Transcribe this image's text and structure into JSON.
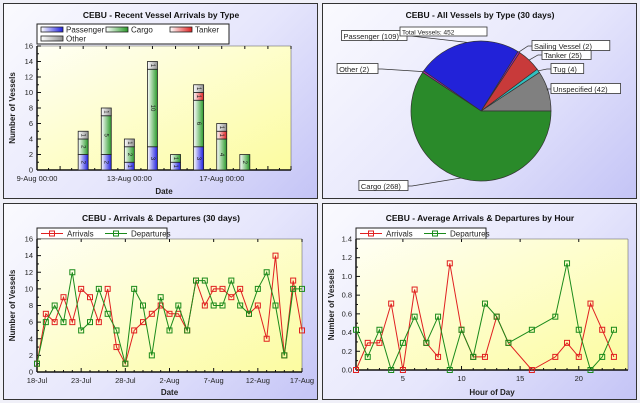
{
  "chart_data": [
    {
      "type": "bar",
      "stacked": true,
      "title": "CEBU - Recent Vessel Arrivals by Type",
      "xlabel": "Date",
      "ylabel": "Number of Vessels",
      "ylim": [
        0,
        16
      ],
      "yticks": [
        0,
        2,
        4,
        6,
        8,
        10,
        12,
        14,
        16
      ],
      "xlim_days": [
        9,
        20
      ],
      "xticks": [
        {
          "day": 9,
          "label": "9-Aug 00:00"
        },
        {
          "day": 13,
          "label": "13-Aug 00:00"
        },
        {
          "day": 17,
          "label": "17-Aug 00:00"
        }
      ],
      "categories_day": [
        11,
        12,
        13,
        14,
        15,
        16,
        17,
        18
      ],
      "series": [
        {
          "name": "Passenger",
          "color": "#2020e0",
          "values": [
            2,
            2,
            1,
            3,
            1,
            3,
            0,
            0
          ]
        },
        {
          "name": "Cargo",
          "color": "#2a9a2a",
          "values": [
            2,
            5,
            2,
            10,
            1,
            6,
            4,
            2
          ]
        },
        {
          "name": "Tanker",
          "color": "#e02020",
          "values": [
            0,
            0,
            0,
            0,
            0,
            1,
            1,
            0
          ]
        },
        {
          "name": "Other",
          "color": "#909090",
          "values": [
            1,
            1,
            1,
            1,
            0,
            1,
            1,
            0
          ]
        }
      ],
      "legend": "top-left"
    },
    {
      "type": "pie",
      "title": "CEBU - All Vessels by Type (30 days)",
      "total_label": "Total Vessels: 452",
      "slices": [
        {
          "name": "Unspecified",
          "value": 42,
          "label": "Unspecified (42)",
          "color": "#808080"
        },
        {
          "name": "Tug",
          "value": 4,
          "label": "Tug (4)",
          "color": "#30c0c0"
        },
        {
          "name": "Tanker",
          "value": 25,
          "label": "Tanker (25)",
          "color": "#c83a3a"
        },
        {
          "name": "Sailing Vessel",
          "value": 2,
          "label": "Sailing Vessel (2)",
          "color": "#a020c0"
        },
        {
          "name": "Passenger",
          "value": 109,
          "label": "Passenger (109)",
          "color": "#2222d8"
        },
        {
          "name": "Other",
          "value": 2,
          "label": "Other (2)",
          "color": "#b020b0"
        },
        {
          "name": "Cargo",
          "value": 268,
          "label": "Cargo (268)",
          "color": "#2a8a2a"
        }
      ]
    },
    {
      "type": "line",
      "title": "CEBU - Arrivals & Departures (30 days)",
      "xlabel": "Date",
      "ylabel": "Number of Vessels",
      "ylim": [
        0,
        16
      ],
      "yticks": [
        0,
        2,
        4,
        6,
        8,
        10,
        12,
        14,
        16
      ],
      "xlim": [
        0,
        30
      ],
      "xticks": [
        {
          "x": 0,
          "label": "18-Jul"
        },
        {
          "x": 5,
          "label": "23-Jul"
        },
        {
          "x": 10,
          "label": "28-Jul"
        },
        {
          "x": 15,
          "label": "2-Aug"
        },
        {
          "x": 20,
          "label": "7-Aug"
        },
        {
          "x": 25,
          "label": "12-Aug"
        },
        {
          "x": 30,
          "label": "17-Aug"
        }
      ],
      "series": [
        {
          "name": "Arrivals",
          "color": "#e02020",
          "values": [
            1,
            7,
            6,
            9,
            6,
            10,
            9,
            6,
            10,
            3,
            1,
            5,
            6,
            7,
            8,
            7,
            7,
            5,
            11,
            8,
            10,
            10,
            9,
            10,
            7,
            8,
            4,
            14,
            2,
            11,
            5
          ]
        },
        {
          "name": "Departures",
          "color": "#1a8a1a",
          "values": [
            1,
            6,
            8,
            6,
            12,
            5,
            6,
            10,
            7,
            5,
            1,
            10,
            8,
            2,
            9,
            5,
            8,
            5,
            11,
            11,
            8,
            8,
            11,
            8,
            7,
            10,
            12,
            8,
            2,
            10,
            10
          ]
        }
      ],
      "legend": "top-left"
    },
    {
      "type": "line",
      "title": "CEBU - Average Arrivals & Departures by Hour",
      "xlabel": "Hour of Day",
      "ylabel": "Number of Vessels",
      "ylim": [
        0,
        1.4
      ],
      "yticks": [
        "0.0",
        "0.2",
        "0.4",
        "0.6",
        "0.8",
        "1.0",
        "1.2",
        "1.4"
      ],
      "xlim": [
        1,
        24.2
      ],
      "xticks": [
        5,
        10,
        15,
        20
      ],
      "x": [
        1,
        2,
        3,
        4,
        5,
        6,
        7,
        8,
        9,
        10,
        11,
        12,
        13,
        14,
        16,
        18,
        19,
        20,
        21,
        22,
        23
      ],
      "series": [
        {
          "name": "Arrivals",
          "color": "#e02020",
          "values": [
            0,
            0.29,
            0.29,
            0.71,
            0,
            0.86,
            0.29,
            0.14,
            1.14,
            0.43,
            0.14,
            0.14,
            0.57,
            0.29,
            0,
            0.14,
            0.29,
            0.14,
            0.71,
            0.43,
            0.14
          ]
        },
        {
          "name": "Departures",
          "color": "#1a8a1a",
          "values": [
            0.43,
            0.14,
            0.43,
            0,
            0.29,
            0.57,
            0.29,
            0.57,
            0,
            0.43,
            0.14,
            0.71,
            0.57,
            0.29,
            0.43,
            0.57,
            1.14,
            0.43,
            0,
            0.14,
            0.43
          ]
        }
      ],
      "legend": "top-left"
    }
  ]
}
